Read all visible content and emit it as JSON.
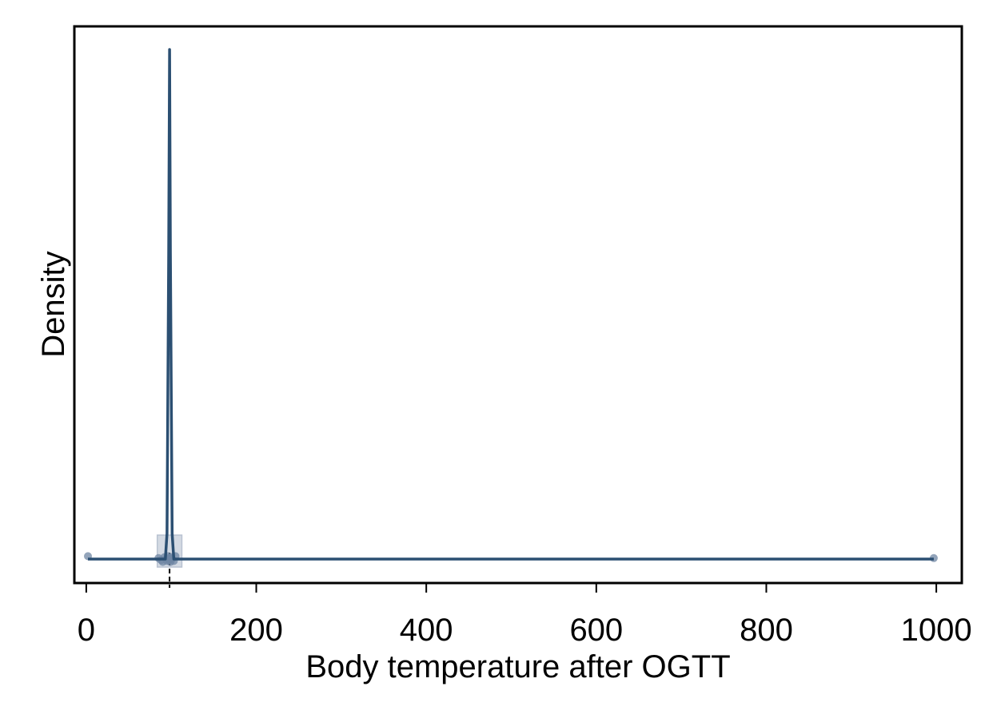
{
  "chart_data": {
    "type": "density",
    "title": "",
    "xlabel": "Body temperature after OGTT",
    "ylabel": "Density",
    "xlim": [
      -14,
      1030
    ],
    "ylim": [
      0,
      1
    ],
    "x_ticks": [
      0,
      200,
      400,
      600,
      800,
      1000
    ],
    "y_ticks_shown": false,
    "grid": false,
    "legend": "none",
    "colors": {
      "line": "#2b4f72",
      "points": "#6f86a3",
      "box": "#b8c2d1"
    },
    "density_curve": {
      "x": [
        2,
        50,
        85,
        93,
        95,
        97,
        98,
        99,
        101,
        103,
        110,
        200,
        400,
        600,
        800,
        997
      ],
      "y": [
        0.0,
        0.0,
        0.0,
        0.0,
        0.05,
        0.6,
        1.0,
        0.6,
        0.05,
        0.0,
        0.0,
        0.0,
        0.0,
        0.0,
        0.0,
        0.0
      ]
    },
    "boxplot": {
      "min": 2,
      "q1": 92,
      "median": 98,
      "q3": 104,
      "max": 997
    },
    "points": [
      2,
      85,
      88,
      90,
      92,
      94,
      95,
      96,
      97,
      98,
      99,
      100,
      101,
      103,
      105,
      997
    ]
  }
}
